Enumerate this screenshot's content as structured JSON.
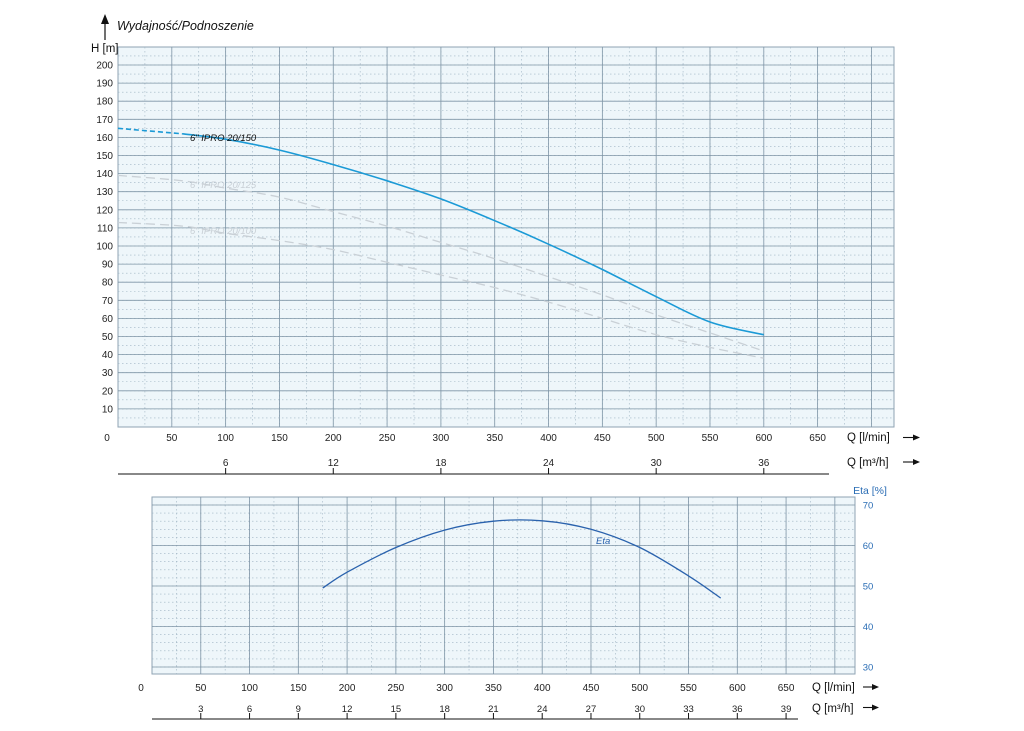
{
  "chart_data": [
    {
      "type": "line",
      "title": "Wydajność/Podnoszenie",
      "ylabel": "H [m]",
      "xlabel": "Q [l/min]",
      "xlabel_secondary": "Q [m³/h]",
      "xlim": [
        0,
        725
      ],
      "ylim": [
        0,
        210
      ],
      "x_ticks": [
        0,
        50,
        100,
        150,
        200,
        250,
        300,
        350,
        400,
        450,
        500,
        550,
        600,
        650
      ],
      "y_ticks": [
        10,
        20,
        30,
        40,
        50,
        60,
        70,
        80,
        90,
        100,
        110,
        120,
        130,
        140,
        150,
        160,
        170,
        180,
        190,
        200
      ],
      "x2_ticks": [
        6,
        12,
        18,
        24,
        30,
        36
      ],
      "grid": true,
      "series": [
        {
          "name": "6\" IPRO 20/150",
          "color": "#1b9ad6",
          "dashed_until": 60,
          "x": [
            0,
            60,
            100,
            150,
            200,
            250,
            300,
            350,
            400,
            450,
            500,
            550,
            600
          ],
          "y": [
            165,
            162,
            159,
            153,
            145,
            136,
            126,
            114,
            101,
            87,
            72,
            58,
            51
          ]
        },
        {
          "name": "6\" IPRO 20/125",
          "color": "#c9d0d6",
          "x": [
            0,
            60,
            100,
            150,
            200,
            250,
            300,
            350,
            400,
            450,
            500,
            550,
            600
          ],
          "y": [
            139,
            136,
            132,
            127,
            119,
            111,
            102,
            93,
            83,
            73,
            62,
            52,
            42
          ]
        },
        {
          "name": "6\" IPRO 20/100",
          "color": "#c9d0d6",
          "x": [
            0,
            60,
            100,
            150,
            200,
            250,
            300,
            350,
            400,
            450,
            500,
            550,
            600
          ],
          "y": [
            113,
            111,
            107,
            103,
            98,
            91,
            84,
            77,
            69,
            60,
            51,
            44,
            38
          ]
        }
      ]
    },
    {
      "type": "line",
      "ylabel": "Eta [%]",
      "xlabel": "Q [l/min]",
      "xlabel_secondary": "Q [m³/h]",
      "xlim": [
        0,
        725
      ],
      "ylim": [
        28,
        70
      ],
      "x_ticks": [
        0,
        50,
        100,
        150,
        200,
        250,
        300,
        350,
        400,
        450,
        500,
        550,
        600,
        650
      ],
      "y_ticks": [
        30,
        40,
        50,
        60,
        70
      ],
      "x2_ticks": [
        3,
        6,
        9,
        12,
        15,
        18,
        21,
        24,
        27,
        30,
        33,
        36,
        39
      ],
      "grid": true,
      "series": [
        {
          "name": "Eta",
          "color": "#2a62ad",
          "x": [
            175,
            200,
            250,
            300,
            350,
            400,
            450,
            500,
            550,
            583
          ],
          "y": [
            49.5,
            53.4,
            59.5,
            63.8,
            66.0,
            66.1,
            64.0,
            59.5,
            52.5,
            47.0
          ]
        }
      ]
    }
  ]
}
